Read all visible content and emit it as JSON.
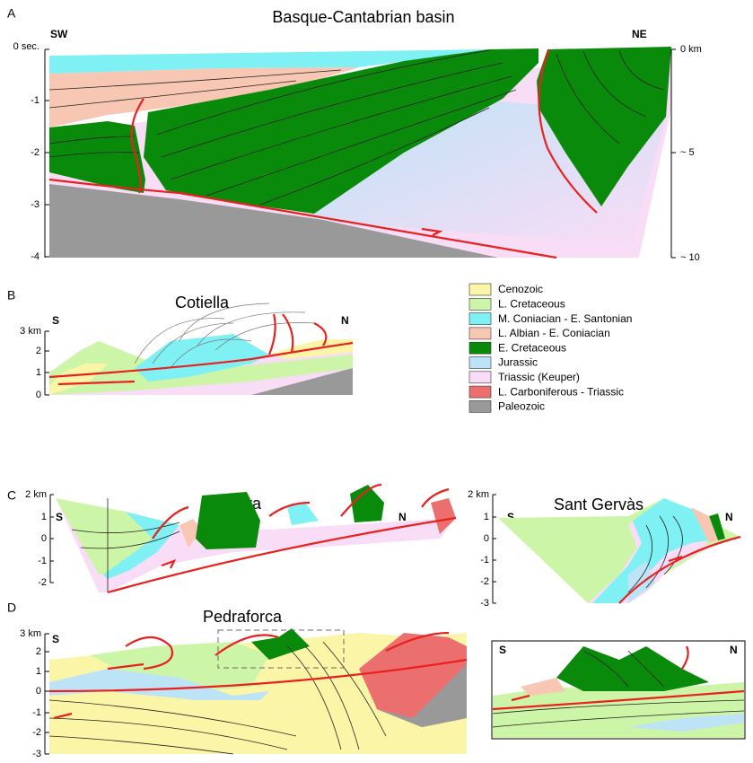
{
  "panels": [
    {
      "letter": "A",
      "title": "Basque-Cantabrian basin",
      "left": "SW",
      "right": "NE",
      "left_axis": [
        "0 sec.",
        "-1",
        "-2",
        "-3",
        "-4"
      ],
      "right_axis": [
        "0 km",
        "~ 5",
        "~ 10"
      ]
    },
    {
      "letter": "B",
      "title": "Cotiella",
      "left": "S",
      "right": "N",
      "left_axis": [
        "3 km",
        "2",
        "1",
        "0"
      ]
    },
    {
      "letter": "C",
      "sections": [
        {
          "title": "Sopeira",
          "left": "S",
          "right": "N",
          "left_axis": [
            "2 km",
            "1",
            "0",
            "-1",
            "-2"
          ]
        },
        {
          "title": "Sant Gervàs",
          "left": "S",
          "right": "N",
          "left_axis": [
            "2 km",
            "1",
            "0",
            "-1",
            "-2",
            "-3"
          ]
        }
      ]
    },
    {
      "letter": "D",
      "title": "Pedraforca",
      "left": "S",
      "right": "N",
      "left_axis": [
        "3 km",
        "2",
        "1",
        "0",
        "-1",
        "-2",
        "-3"
      ],
      "inset": {
        "left": "S",
        "right": "N"
      }
    }
  ],
  "legend": [
    {
      "label": "Cenozoic",
      "color": "#fbf5a8"
    },
    {
      "label": "L. Cretaceous",
      "color": "#cdf5a8"
    },
    {
      "label": "M. Coniacian - E. Santonian",
      "color": "#7ff0f4"
    },
    {
      "label": "L. Albian - E. Coniacian",
      "color": "#f7c7b4"
    },
    {
      "label": "E. Cretaceous",
      "color": "#0a8a0a"
    },
    {
      "label": "Jurassic",
      "color": "#bde3f7"
    },
    {
      "label": "Triassic (Keuper)",
      "color": "#f9dcf5"
    },
    {
      "label": "L. Carboniferous - Triassic",
      "color": "#ec6f6f"
    },
    {
      "label": "Paleozoic",
      "color": "#999999"
    }
  ]
}
